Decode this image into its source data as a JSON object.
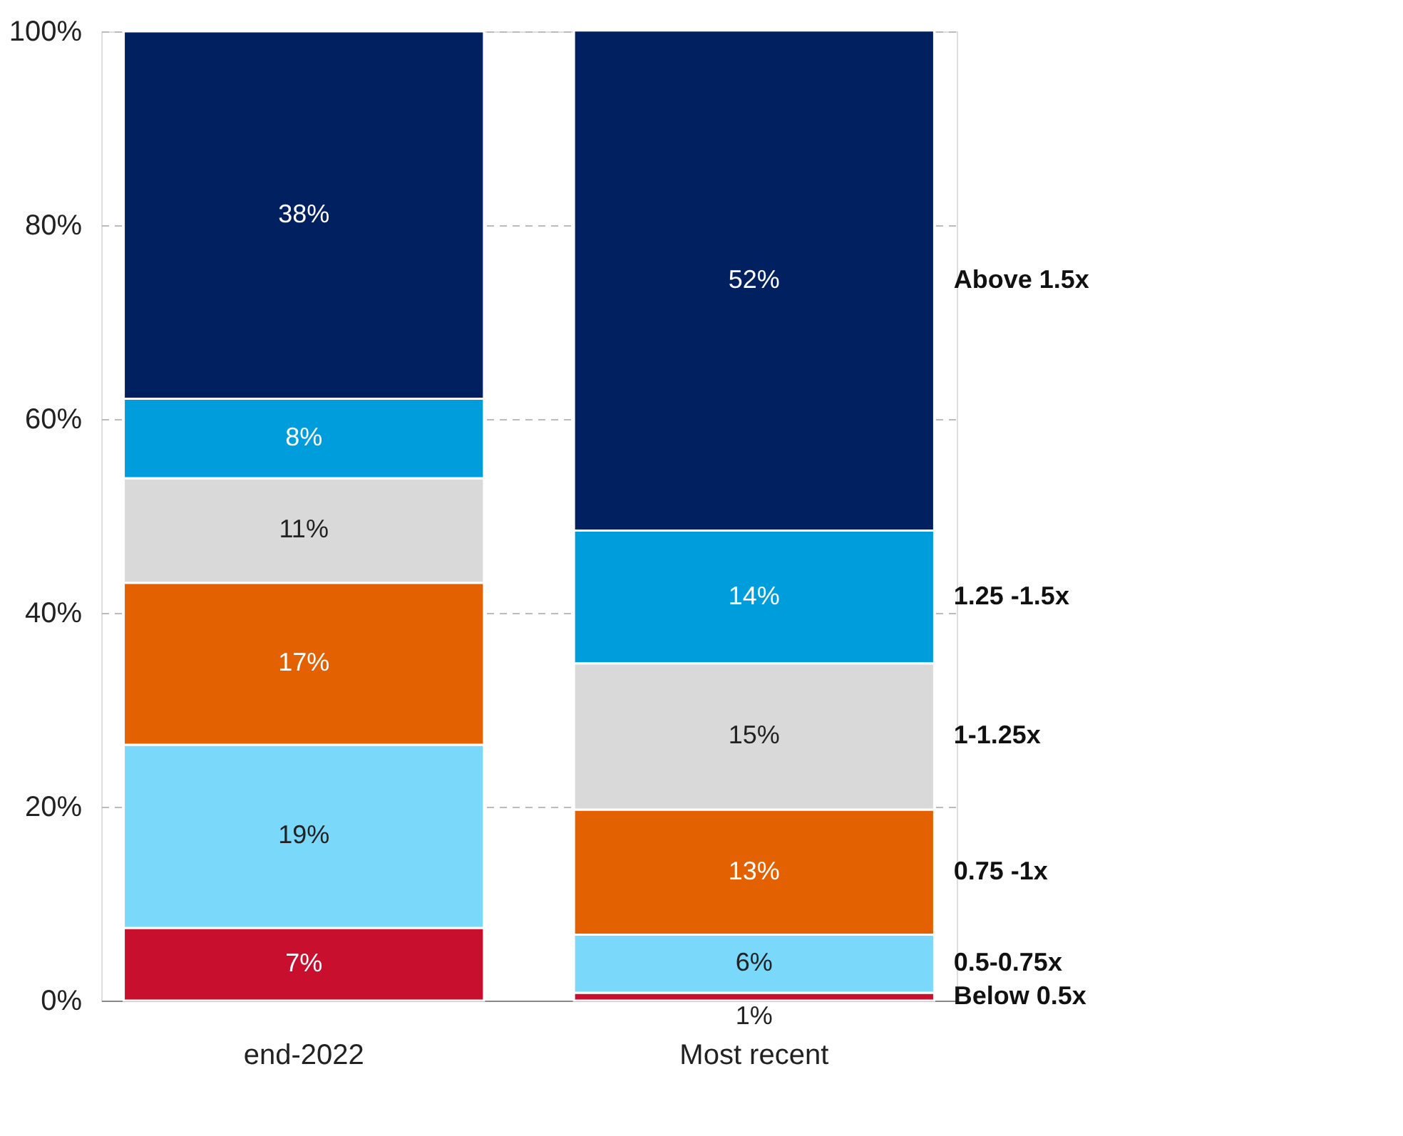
{
  "chart_data": {
    "type": "bar",
    "stacked": true,
    "categories": [
      "end-2022",
      "Most recent"
    ],
    "series": [
      {
        "name": "Below 0.5x",
        "color": "#c8102e",
        "values": [
          7.5,
          0.8
        ],
        "value_labels": [
          "7%",
          "1%"
        ]
      },
      {
        "name": "0.5-0.75x",
        "color": "#7ad8fb",
        "values": [
          18.9,
          6
        ],
        "value_labels": [
          "19%",
          "6%"
        ]
      },
      {
        "name": "0.75 -1x",
        "color": "#e36100",
        "values": [
          16.7,
          12.9
        ],
        "value_labels": [
          "17%",
          "13%"
        ]
      },
      {
        "name": "1-1.25x",
        "color": "#d9d9d9",
        "values": [
          10.8,
          15.1
        ],
        "value_labels": [
          "11%",
          "15%"
        ]
      },
      {
        "name": "1.25 -1.5x",
        "color": "#009ddc",
        "values": [
          8.2,
          13.7
        ],
        "value_labels": [
          "8%",
          "14%"
        ]
      },
      {
        "name": "Above 1.5x",
        "color": "#002060",
        "values": [
          37.9,
          51.6
        ],
        "value_labels": [
          "38%",
          "52%"
        ]
      }
    ],
    "ylim": [
      0,
      100
    ],
    "yticks": [
      {
        "value": 0,
        "label": "0%"
      },
      {
        "value": 20,
        "label": "20%"
      },
      {
        "value": 40,
        "label": "40%"
      },
      {
        "value": 60,
        "label": "60%"
      },
      {
        "value": 80,
        "label": "80%"
      },
      {
        "value": 100,
        "label": "100%"
      }
    ],
    "grid": "y",
    "legend": false
  }
}
